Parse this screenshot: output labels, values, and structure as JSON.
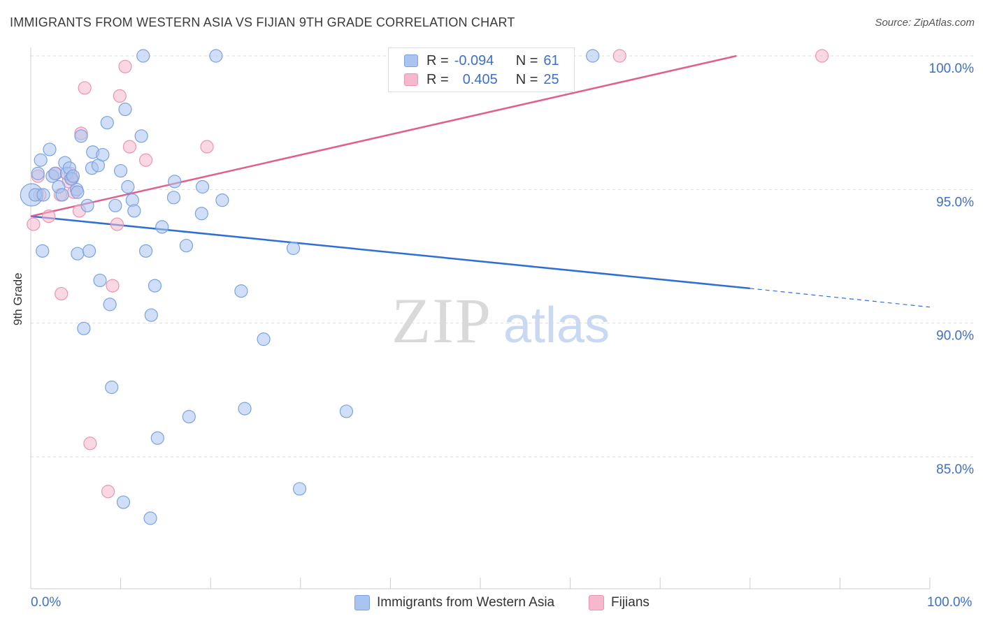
{
  "title": "IMMIGRANTS FROM WESTERN ASIA VS FIJIAN 9TH GRADE CORRELATION CHART",
  "source": "Source: ZipAtlas.com",
  "watermark": {
    "zip": "ZIP",
    "atlas": "atlas"
  },
  "legend": {
    "rows": [
      {
        "r_label": "R =",
        "r_value": "-0.094",
        "n_label": "N =",
        "n_value": "61"
      },
      {
        "r_label": "R =",
        "r_value": "0.405",
        "n_label": "N =",
        "n_value": "25"
      }
    ]
  },
  "bottom_legend": {
    "series1": "Immigrants from Western Asia",
    "series2": "Fijians"
  },
  "colors": {
    "blue_fill": "#a9c4f0",
    "blue_stroke": "#7aa2e3",
    "blue_line": "#2f6fd4",
    "pink_fill": "#f6b8cc",
    "pink_stroke": "#eb94b0",
    "pink_line": "#e0608b",
    "axis_label": "#3b6fd0",
    "grid": "#dddddd"
  },
  "chart_data": {
    "type": "scatter",
    "title": "IMMIGRANTS FROM WESTERN ASIA VS FIJIAN 9TH GRADE CORRELATION CHART",
    "xlabel": "",
    "ylabel": "9th Grade",
    "xlim": [
      0,
      100
    ],
    "ylim": [
      80.5,
      100.5
    ],
    "x_tick_labels": [
      "0.0%",
      "100.0%"
    ],
    "y_ticks": [
      85,
      90,
      95,
      100
    ],
    "y_tick_labels": [
      "85.0%",
      "90.0%",
      "95.0%",
      "100.0%"
    ],
    "series": [
      {
        "name": "Immigrants from Western Asia",
        "color": "#a9c4f0",
        "trend": {
          "x": [
            0,
            80
          ],
          "y": [
            94.0,
            91.3
          ],
          "dashed_to": [
            100,
            90.6
          ]
        },
        "points": [
          [
            0.1,
            94.8,
            16
          ],
          [
            0.5,
            94.8,
            10
          ],
          [
            0.8,
            95.6,
            10
          ],
          [
            1.1,
            96.1,
            10
          ],
          [
            1.3,
            92.7,
            10
          ],
          [
            1.4,
            94.8,
            10
          ],
          [
            2.1,
            96.5,
            10
          ],
          [
            2.4,
            95.5,
            10
          ],
          [
            2.7,
            95.6,
            10
          ],
          [
            3.1,
            95.1,
            10
          ],
          [
            3.5,
            94.8,
            10
          ],
          [
            3.8,
            96.0,
            10
          ],
          [
            4.0,
            95.6,
            10
          ],
          [
            4.3,
            95.8,
            10
          ],
          [
            4.5,
            95.4,
            10
          ],
          [
            4.7,
            95.5,
            10
          ],
          [
            5.1,
            95.0,
            10
          ],
          [
            5.2,
            94.9,
            10
          ],
          [
            5.2,
            92.6,
            10
          ],
          [
            5.6,
            97.0,
            10
          ],
          [
            5.9,
            89.8,
            10
          ],
          [
            6.3,
            94.4,
            10
          ],
          [
            6.5,
            92.7,
            10
          ],
          [
            6.8,
            95.8,
            10
          ],
          [
            6.9,
            96.4,
            10
          ],
          [
            7.5,
            95.9,
            10
          ],
          [
            7.7,
            91.6,
            10
          ],
          [
            8.0,
            96.3,
            10
          ],
          [
            8.5,
            97.5,
            10
          ],
          [
            8.8,
            90.7,
            10
          ],
          [
            9.0,
            87.6,
            10
          ],
          [
            9.4,
            94.4,
            10
          ],
          [
            10.0,
            95.7,
            10
          ],
          [
            10.3,
            83.3,
            10
          ],
          [
            10.5,
            98.0,
            10
          ],
          [
            10.8,
            95.1,
            10
          ],
          [
            11.3,
            94.6,
            10
          ],
          [
            11.5,
            94.2,
            10
          ],
          [
            12.3,
            97.0,
            10
          ],
          [
            12.5,
            100.0,
            10
          ],
          [
            12.8,
            92.7,
            10
          ],
          [
            13.3,
            82.7,
            10
          ],
          [
            13.4,
            90.3,
            10
          ],
          [
            13.8,
            91.4,
            10
          ],
          [
            14.1,
            85.7,
            10
          ],
          [
            14.6,
            93.6,
            10
          ],
          [
            15.9,
            94.7,
            10
          ],
          [
            16.0,
            95.3,
            10
          ],
          [
            17.3,
            92.9,
            10
          ],
          [
            17.6,
            86.5,
            10
          ],
          [
            19.0,
            94.1,
            10
          ],
          [
            19.1,
            95.1,
            10
          ],
          [
            20.6,
            100.0,
            10
          ],
          [
            21.3,
            94.6,
            10
          ],
          [
            23.4,
            91.2,
            10
          ],
          [
            23.8,
            86.8,
            10
          ],
          [
            25.9,
            89.4,
            10
          ],
          [
            29.2,
            92.8,
            10
          ],
          [
            29.9,
            83.8,
            10
          ],
          [
            35.1,
            86.7,
            10
          ],
          [
            62.5,
            100.0,
            10
          ]
        ]
      },
      {
        "name": "Fijians",
        "color": "#f6b8cc",
        "trend": {
          "x": [
            0,
            78.5
          ],
          "y": [
            94.0,
            100.0
          ]
        },
        "points": [
          [
            0.3,
            93.7,
            10
          ],
          [
            0.8,
            95.5,
            10
          ],
          [
            1.0,
            94.8,
            10
          ],
          [
            2.0,
            94.0,
            10
          ],
          [
            2.8,
            95.6,
            10
          ],
          [
            3.3,
            94.8,
            10
          ],
          [
            3.4,
            91.1,
            10
          ],
          [
            4.2,
            95.3,
            10
          ],
          [
            4.4,
            95.6,
            10
          ],
          [
            4.6,
            95.4,
            10
          ],
          [
            4.8,
            94.9,
            10
          ],
          [
            5.4,
            94.2,
            10
          ],
          [
            5.6,
            97.1,
            10
          ],
          [
            6.0,
            98.8,
            10
          ],
          [
            6.6,
            85.5,
            10
          ],
          [
            8.6,
            83.7,
            10
          ],
          [
            9.1,
            91.4,
            10
          ],
          [
            9.6,
            93.7,
            10
          ],
          [
            9.9,
            98.5,
            10
          ],
          [
            10.5,
            99.6,
            10
          ],
          [
            11.0,
            96.6,
            10
          ],
          [
            12.8,
            96.1,
            10
          ],
          [
            19.6,
            96.6,
            10
          ],
          [
            65.5,
            100.0,
            10
          ],
          [
            88.0,
            100.0,
            10
          ]
        ]
      }
    ]
  }
}
